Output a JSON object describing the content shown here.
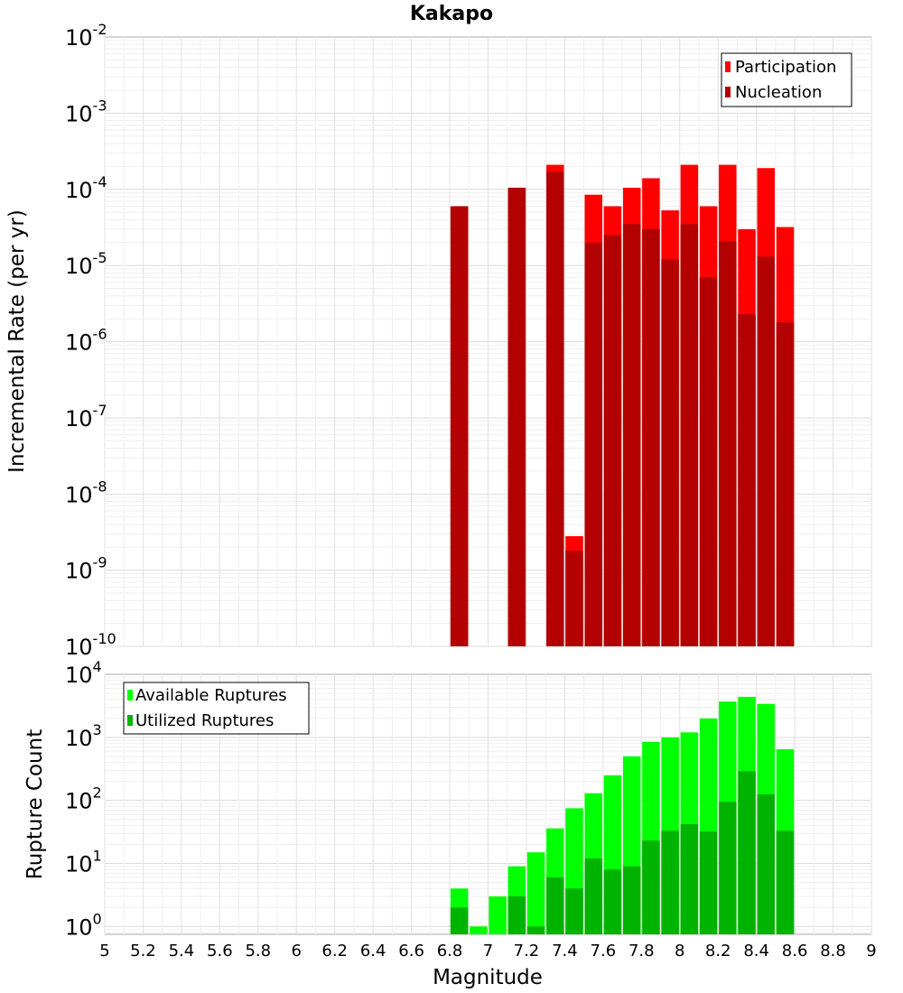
{
  "chart_data": [
    {
      "type": "bar",
      "title": "Kakapo",
      "xlabel": "Magnitude",
      "ylabel": "Incremental Rate (per yr)",
      "yscale": "log",
      "ylim": [
        1e-10,
        0.01
      ],
      "xlim": [
        5,
        9
      ],
      "y_tick_exponents": [
        -2,
        -3,
        -4,
        -5,
        -6,
        -7,
        -8,
        -9,
        -10
      ],
      "legend": {
        "position": "top-right",
        "entries": [
          "Participation",
          "Nucleation"
        ]
      },
      "colors": {
        "Participation": "#ff0000",
        "Nucleation": "#b30000"
      },
      "x": [
        6.85,
        7.15,
        7.35,
        7.45,
        7.55,
        7.65,
        7.75,
        7.85,
        7.95,
        8.05,
        8.15,
        8.25,
        8.35,
        8.45,
        8.55
      ],
      "series": [
        {
          "name": "Participation",
          "values": [
            6e-05,
            0.000105,
            0.00021,
            2.8e-09,
            8.5e-05,
            6e-05,
            0.000105,
            0.00014,
            5.3e-05,
            0.00021,
            6e-05,
            0.00021,
            3e-05,
            0.00019,
            3.2e-05
          ]
        },
        {
          "name": "Nucleation",
          "values": [
            6e-05,
            0.000105,
            0.00017,
            1.8e-09,
            2e-05,
            2.5e-05,
            3.5e-05,
            3e-05,
            1.2e-05,
            3.5e-05,
            7e-06,
            2.1e-05,
            2.3e-06,
            1.3e-05,
            1.8e-06
          ]
        }
      ],
      "grid": true
    },
    {
      "type": "bar",
      "xlabel": "Magnitude",
      "ylabel": "Rupture Count",
      "yscale": "log",
      "ylim": [
        0.75,
        10000
      ],
      "xlim": [
        5,
        9
      ],
      "x_ticks": [
        "5",
        "5.2",
        "5.4",
        "5.6",
        "5.8",
        "6",
        "6.2",
        "6.4",
        "6.6",
        "6.8",
        "7",
        "7.2",
        "7.4",
        "7.6",
        "7.8",
        "8",
        "8.2",
        "8.4",
        "8.6",
        "8.8",
        "9"
      ],
      "y_tick_exponents": [
        4,
        3,
        2,
        1,
        0
      ],
      "legend": {
        "position": "top-left",
        "entries": [
          "Available Ruptures",
          "Utilized Ruptures"
        ]
      },
      "colors": {
        "Available Ruptures": "#00ff00",
        "Utilized Ruptures": "#00b300"
      },
      "x": [
        6.85,
        6.95,
        7.05,
        7.15,
        7.25,
        7.35,
        7.45,
        7.55,
        7.65,
        7.75,
        7.85,
        7.95,
        8.05,
        8.15,
        8.25,
        8.35,
        8.45,
        8.55
      ],
      "series": [
        {
          "name": "Available Ruptures",
          "values": [
            4,
            1,
            3,
            9,
            15,
            36,
            75,
            130,
            250,
            500,
            850,
            1000,
            1200,
            2000,
            3700,
            4400,
            3400,
            650
          ]
        },
        {
          "name": "Utilized Ruptures",
          "values": [
            2,
            0,
            0,
            3,
            1,
            6,
            4,
            12,
            8,
            9,
            23,
            33,
            42,
            32,
            95,
            290,
            125,
            33
          ]
        }
      ],
      "grid": true
    }
  ]
}
